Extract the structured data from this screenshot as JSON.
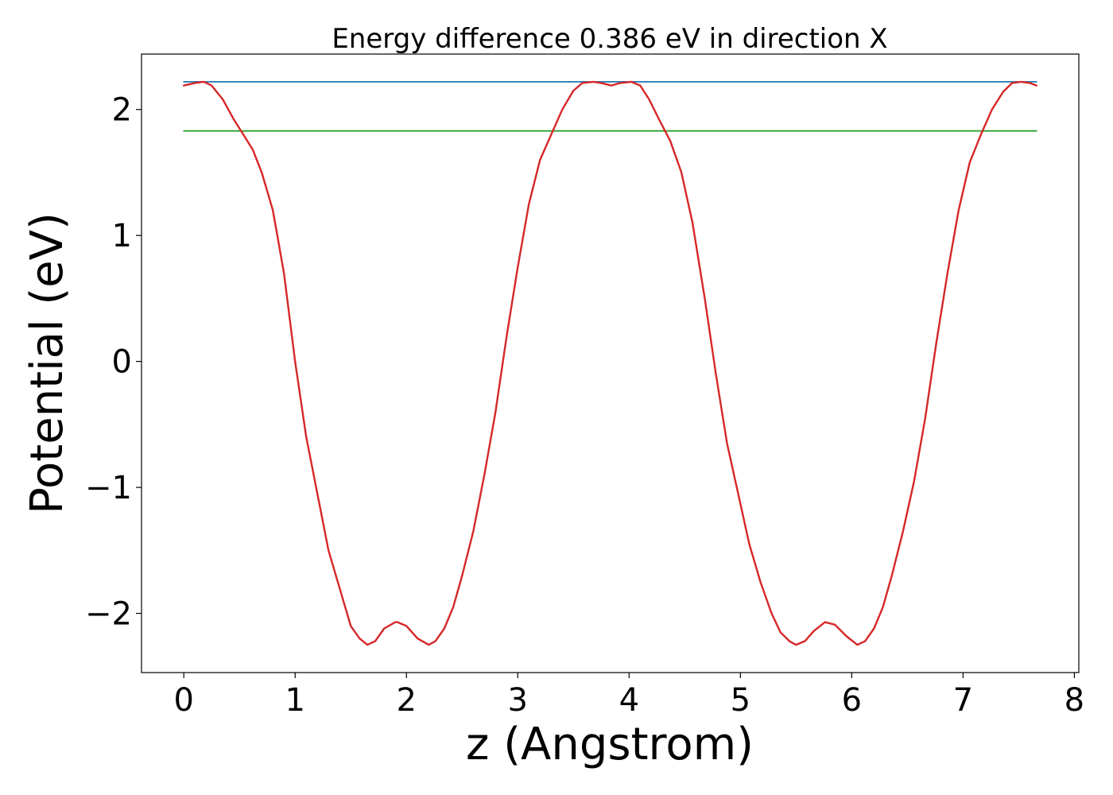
{
  "chart_data": {
    "type": "line",
    "title": "Energy difference 0.386 eV in direction X",
    "xlabel": "z (Angstrom)",
    "ylabel": "Potential (eV)",
    "xlim": [
      -0.38,
      8.04
    ],
    "ylim": [
      -2.47,
      2.44
    ],
    "xticks": [
      0,
      1,
      2,
      3,
      4,
      5,
      6,
      7,
      8
    ],
    "xtick_labels": [
      "0",
      "1",
      "2",
      "3",
      "4",
      "5",
      "6",
      "7",
      "8"
    ],
    "yticks": [
      -2,
      -1,
      0,
      1,
      2
    ],
    "ytick_labels": [
      "−2",
      "−1",
      "0",
      "1",
      "2"
    ],
    "grid": false,
    "series": [
      {
        "color": "#1f77b4",
        "x": [
          0,
          7.66
        ],
        "y": [
          2.22,
          2.22
        ]
      },
      {
        "color": "#2ca02c",
        "x": [
          0,
          7.66
        ],
        "y": [
          1.83,
          1.83
        ]
      },
      {
        "color": "#d62728",
        "x": [
          0,
          0.1,
          0.18,
          0.25,
          0.35,
          0.45,
          0.55,
          0.62,
          0.7,
          0.8,
          0.9,
          1.0,
          1.1,
          1.2,
          1.3,
          1.4,
          1.5,
          1.58,
          1.65,
          1.72,
          1.8,
          1.9,
          1.92,
          2.0,
          2.1,
          2.2,
          2.26,
          2.34,
          2.42,
          2.5,
          2.6,
          2.7,
          2.8,
          2.9,
          3.0,
          3.1,
          3.2,
          3.3,
          3.4,
          3.5,
          3.58,
          3.68,
          3.75,
          3.84,
          3.92,
          4.02,
          4.1,
          4.18,
          4.27,
          4.37,
          4.47,
          4.57,
          4.68,
          4.78,
          4.88,
          4.98,
          5.08,
          5.18,
          5.28,
          5.36,
          5.44,
          5.5,
          5.58,
          5.66,
          5.76,
          5.85,
          5.95,
          6.05,
          6.12,
          6.2,
          6.28,
          6.36,
          6.46,
          6.56,
          6.66,
          6.76,
          6.86,
          6.96,
          7.06,
          7.16,
          7.26,
          7.36,
          7.44,
          7.52,
          7.6,
          7.66
        ],
        "y": [
          2.19,
          2.21,
          2.22,
          2.19,
          2.08,
          1.92,
          1.78,
          1.68,
          1.5,
          1.2,
          0.7,
          0.0,
          -0.6,
          -1.05,
          -1.5,
          -1.8,
          -2.1,
          -2.2,
          -2.25,
          -2.22,
          -2.12,
          -2.07,
          -2.07,
          -2.1,
          -2.2,
          -2.25,
          -2.22,
          -2.12,
          -1.95,
          -1.7,
          -1.35,
          -0.9,
          -0.4,
          0.2,
          0.75,
          1.25,
          1.6,
          1.8,
          2.0,
          2.15,
          2.21,
          2.22,
          2.21,
          2.19,
          2.21,
          2.22,
          2.19,
          2.08,
          1.92,
          1.75,
          1.5,
          1.1,
          0.5,
          -0.1,
          -0.65,
          -1.05,
          -1.45,
          -1.75,
          -2.0,
          -2.15,
          -2.22,
          -2.25,
          -2.22,
          -2.14,
          -2.07,
          -2.09,
          -2.18,
          -2.25,
          -2.22,
          -2.12,
          -1.95,
          -1.7,
          -1.35,
          -0.95,
          -0.45,
          0.15,
          0.7,
          1.2,
          1.58,
          1.8,
          2.0,
          2.14,
          2.21,
          2.22,
          2.21,
          2.19
        ]
      }
    ]
  }
}
